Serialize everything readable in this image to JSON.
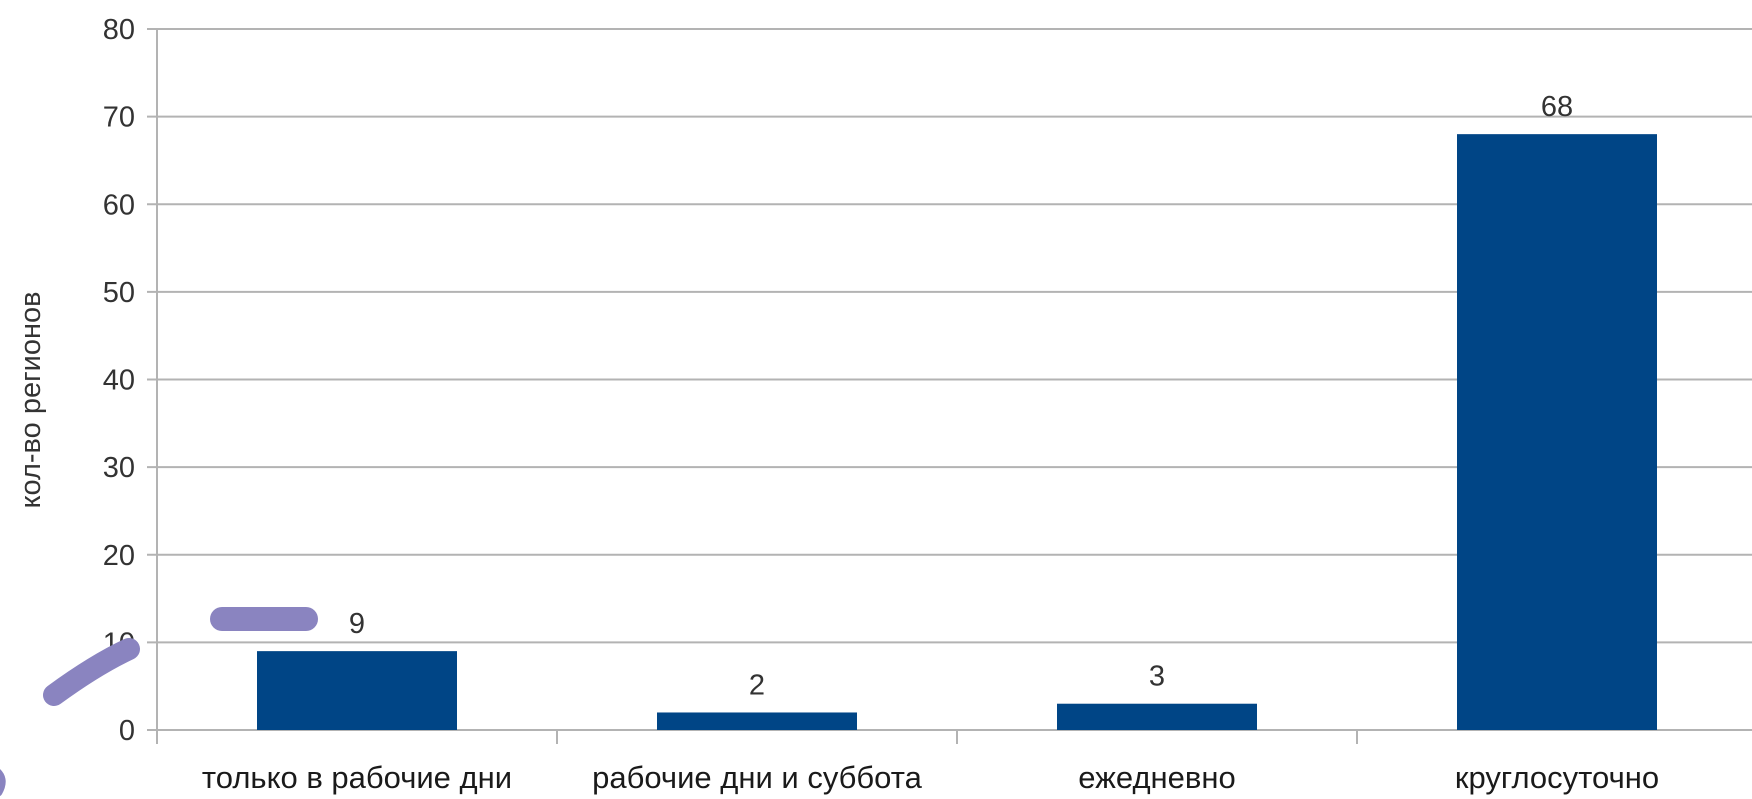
{
  "chart_data": {
    "type": "bar",
    "categories": [
      "только в рабочие дни",
      "рабочие дни и суббота",
      "ежедневно",
      "круглосуточно"
    ],
    "values": [
      9,
      2,
      3,
      68
    ],
    "data_labels": [
      "9",
      "2",
      "3",
      "68"
    ],
    "title": "",
    "xlabel": "",
    "ylabel": "кол-во регионов",
    "ylim": [
      0,
      80
    ],
    "yticks": [
      0,
      10,
      20,
      30,
      40,
      50,
      60,
      70,
      80
    ],
    "grid": true,
    "legend": "none",
    "bar_color": "#004586",
    "grid_color": "#b3b3b3",
    "annotation_color": "#8a84c0"
  }
}
